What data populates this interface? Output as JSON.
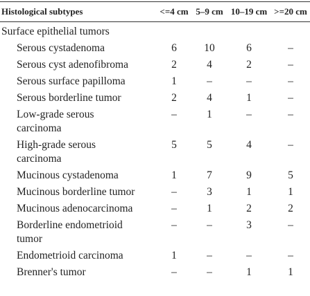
{
  "table": {
    "header": [
      "Histological subtypes",
      "<=4 cm",
      "5–9 cm",
      "10–19 cm",
      ">=20 cm"
    ],
    "section": "Surface epithelial tumors",
    "rows": [
      [
        "Serous cystadenoma",
        6,
        10,
        6,
        "–"
      ],
      [
        "Serous cyst adenofibroma",
        2,
        4,
        2,
        "–"
      ],
      [
        "Serous surface papilloma",
        1,
        "–",
        "–",
        "–"
      ],
      [
        "Serous borderline tumor",
        2,
        4,
        1,
        "–"
      ],
      [
        "Low-grade serous\ncarcinoma",
        "–",
        1,
        "–",
        "–"
      ],
      [
        "High-grade serous\ncarcinoma",
        5,
        5,
        4,
        "–"
      ],
      [
        "Mucinous cystadenoma",
        1,
        7,
        9,
        5
      ],
      [
        "Mucinous borderline tumor",
        "–",
        3,
        1,
        1
      ],
      [
        "Mucinous adenocarcinoma",
        "–",
        1,
        2,
        2
      ],
      [
        "Borderline endometrioid\ntumor",
        "–",
        "–",
        3,
        "–"
      ],
      [
        "Endometrioid carcinoma",
        1,
        "–",
        "–",
        "–"
      ],
      [
        "Brenner's tumor",
        "–",
        "–",
        1,
        1
      ]
    ]
  }
}
